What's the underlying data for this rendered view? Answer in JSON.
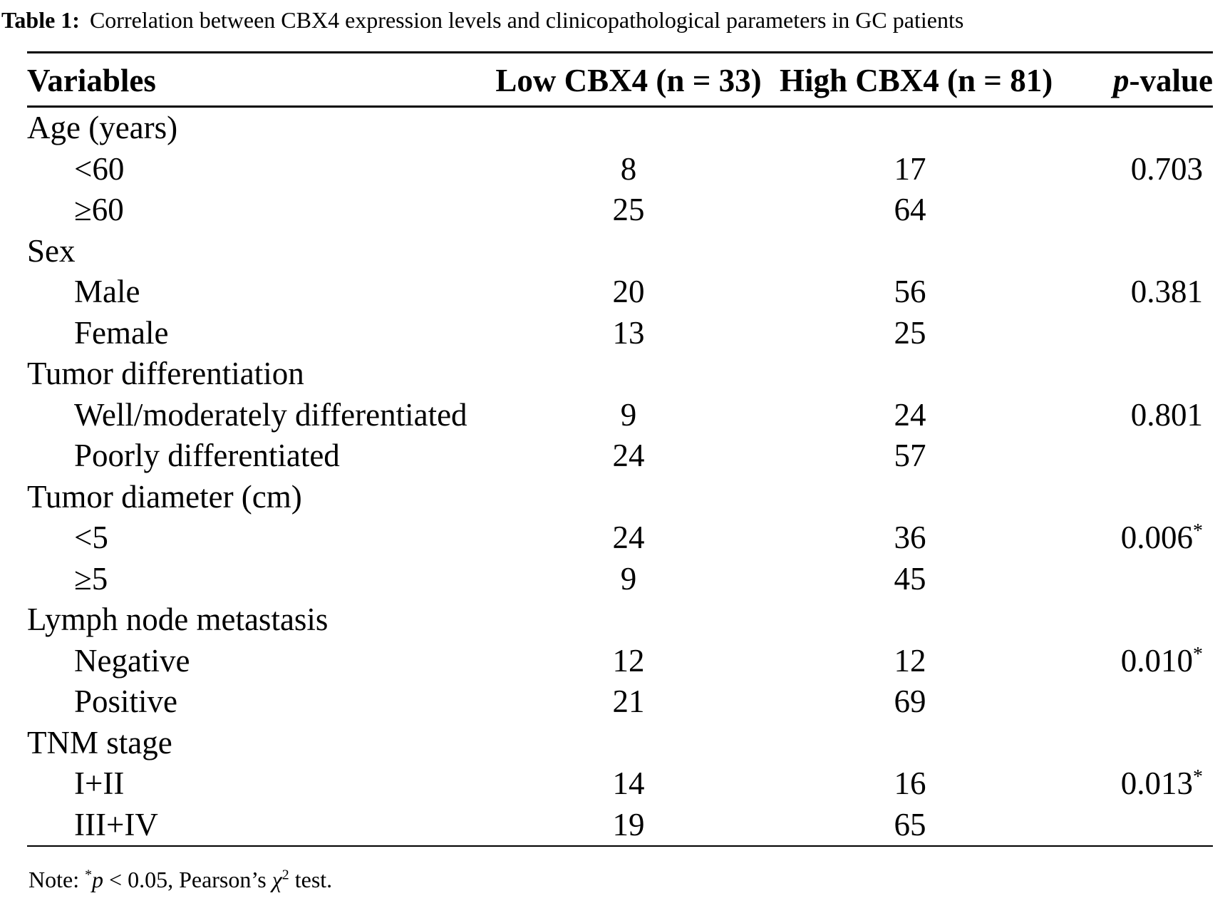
{
  "caption": {
    "label": "Table 1:",
    "text": "Correlation between CBX4 expression levels and clinicopathological parameters in GC patients"
  },
  "table": {
    "headers": {
      "variables": "Variables",
      "low": "Low CBX4 (n = 33)",
      "high": "High CBX4 (n = 81)",
      "p_italic": "p",
      "p_rest": "-value"
    },
    "rows": [
      {
        "label": "Age (years)",
        "indent": false,
        "low": "",
        "high": "",
        "p": ""
      },
      {
        "label": "<60",
        "indent": true,
        "low": "8",
        "high": "17",
        "p": "0.703"
      },
      {
        "label": "≥60",
        "indent": true,
        "low": "25",
        "high": "64",
        "p": ""
      },
      {
        "label": "Sex",
        "indent": false,
        "low": "",
        "high": "",
        "p": ""
      },
      {
        "label": "Male",
        "indent": true,
        "low": "20",
        "high": "56",
        "p": "0.381"
      },
      {
        "label": "Female",
        "indent": true,
        "low": "13",
        "high": "25",
        "p": ""
      },
      {
        "label": "Tumor differentiation",
        "indent": false,
        "low": "",
        "high": "",
        "p": ""
      },
      {
        "label": "Well/moderately differentiated",
        "indent": true,
        "low": "9",
        "high": "24",
        "p": "0.801"
      },
      {
        "label": "Poorly differentiated",
        "indent": true,
        "low": "24",
        "high": "57",
        "p": ""
      },
      {
        "label": "Tumor diameter (cm)",
        "indent": false,
        "low": "",
        "high": "",
        "p": ""
      },
      {
        "label": "<5",
        "indent": true,
        "low": "24",
        "high": "36",
        "p": "0.006",
        "star": "*"
      },
      {
        "label": "≥5",
        "indent": true,
        "low": "9",
        "high": "45",
        "p": ""
      },
      {
        "label": "Lymph node metastasis",
        "indent": false,
        "low": "",
        "high": "",
        "p": ""
      },
      {
        "label": "Negative",
        "indent": true,
        "low": "12",
        "high": "12",
        "p": "0.010",
        "star": "*"
      },
      {
        "label": "Positive",
        "indent": true,
        "low": "21",
        "high": "69",
        "p": ""
      },
      {
        "label": "TNM stage",
        "indent": false,
        "low": "",
        "high": "",
        "p": ""
      },
      {
        "label": "I+II",
        "indent": true,
        "low": "14",
        "high": "16",
        "p": "0.013",
        "star": "*"
      },
      {
        "label": "III+IV",
        "indent": true,
        "low": "19",
        "high": "65",
        "p": ""
      }
    ]
  },
  "note": {
    "prefix": "Note: ",
    "star": "*",
    "p": "p",
    "mid": " < 0.05, Pearson’s ",
    "chi": "χ",
    "exp": "2",
    "suffix": " test."
  },
  "colors": {
    "text": "#000000",
    "background": "#ffffff",
    "rule": "#000000"
  }
}
